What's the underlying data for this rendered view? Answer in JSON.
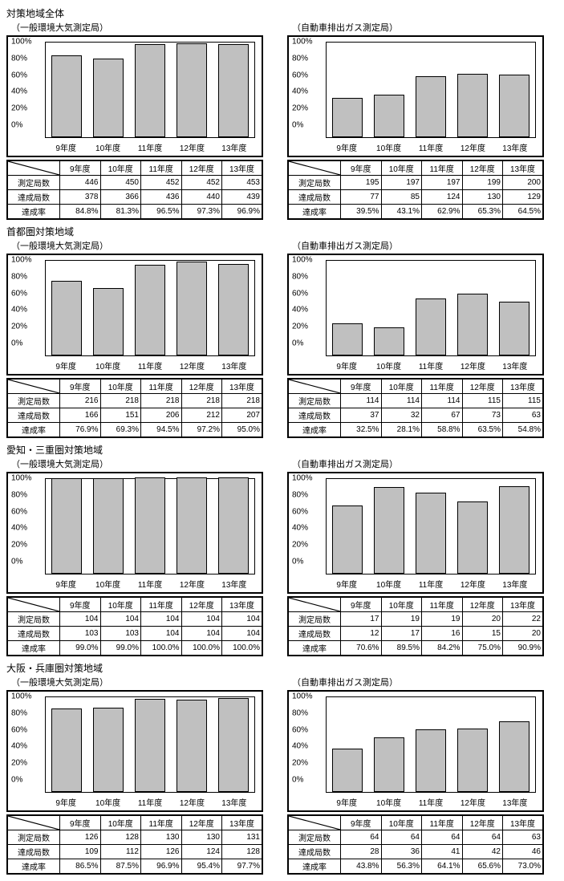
{
  "regions": [
    {
      "title": "対策地域全体",
      "left": {
        "subtitle": "（一般環境大気測定局）",
        "categories": [
          "9年度",
          "10年度",
          "11年度",
          "12年度",
          "13年度"
        ],
        "values": [
          84.8,
          81.3,
          96.5,
          97.3,
          96.9
        ],
        "rows": [
          {
            "label": "測定局数",
            "cells": [
              "446",
              "450",
              "452",
              "452",
              "453"
            ]
          },
          {
            "label": "達成局数",
            "cells": [
              "378",
              "366",
              "436",
              "440",
              "439"
            ]
          },
          {
            "label": "達成率",
            "cells": [
              "84.8%",
              "81.3%",
              "96.5%",
              "97.3%",
              "96.9%"
            ]
          }
        ]
      },
      "right": {
        "subtitle": "（自動車排出ガス測定局）",
        "categories": [
          "9年度",
          "10年度",
          "11年度",
          "12年度",
          "13年度"
        ],
        "values": [
          39.5,
          43.1,
          62.9,
          65.3,
          64.5
        ],
        "rows": [
          {
            "label": "測定局数",
            "cells": [
              "195",
              "197",
              "197",
              "199",
              "200"
            ]
          },
          {
            "label": "達成局数",
            "cells": [
              "77",
              "85",
              "124",
              "130",
              "129"
            ]
          },
          {
            "label": "達成率",
            "cells": [
              "39.5%",
              "43.1%",
              "62.9%",
              "65.3%",
              "64.5%"
            ]
          }
        ]
      }
    },
    {
      "title": "首都圏対策地域",
      "left": {
        "subtitle": "（一般環境大気測定局）",
        "categories": [
          "9年度",
          "10年度",
          "11年度",
          "12年度",
          "13年度"
        ],
        "values": [
          76.9,
          69.3,
          94.5,
          97.2,
          95.0
        ],
        "rows": [
          {
            "label": "測定局数",
            "cells": [
              "216",
              "218",
              "218",
              "218",
              "218"
            ]
          },
          {
            "label": "達成局数",
            "cells": [
              "166",
              "151",
              "206",
              "212",
              "207"
            ]
          },
          {
            "label": "達成率",
            "cells": [
              "76.9%",
              "69.3%",
              "94.5%",
              "97.2%",
              "95.0%"
            ]
          }
        ]
      },
      "right": {
        "subtitle": "（自動車排出ガス測定局）",
        "categories": [
          "9年度",
          "10年度",
          "11年度",
          "12年度",
          "13年度"
        ],
        "values": [
          32.5,
          28.1,
          58.8,
          63.5,
          54.8
        ],
        "rows": [
          {
            "label": "測定局数",
            "cells": [
              "114",
              "114",
              "114",
              "115",
              "115"
            ]
          },
          {
            "label": "達成局数",
            "cells": [
              "37",
              "32",
              "67",
              "73",
              "63"
            ]
          },
          {
            "label": "達成率",
            "cells": [
              "32.5%",
              "28.1%",
              "58.8%",
              "63.5%",
              "54.8%"
            ]
          }
        ]
      }
    },
    {
      "title": "愛知・三重圏対策地域",
      "left": {
        "subtitle": "（一般環境大気測定局）",
        "categories": [
          "9年度",
          "10年度",
          "11年度",
          "12年度",
          "13年度"
        ],
        "values": [
          99.0,
          99.0,
          100.0,
          100.0,
          100.0
        ],
        "rows": [
          {
            "label": "測定局数",
            "cells": [
              "104",
              "104",
              "104",
              "104",
              "104"
            ]
          },
          {
            "label": "達成局数",
            "cells": [
              "103",
              "103",
              "104",
              "104",
              "104"
            ]
          },
          {
            "label": "達成率",
            "cells": [
              "99.0%",
              "99.0%",
              "100.0%",
              "100.0%",
              "100.0%"
            ]
          }
        ]
      },
      "right": {
        "subtitle": "（自動車排出ガス測定局）",
        "categories": [
          "9年度",
          "10年度",
          "11年度",
          "12年度",
          "13年度"
        ],
        "values": [
          70.6,
          89.5,
          84.2,
          75.0,
          90.9
        ],
        "rows": [
          {
            "label": "測定局数",
            "cells": [
              "17",
              "19",
              "19",
              "20",
              "22"
            ]
          },
          {
            "label": "達成局数",
            "cells": [
              "12",
              "17",
              "16",
              "15",
              "20"
            ]
          },
          {
            "label": "達成率",
            "cells": [
              "70.6%",
              "89.5%",
              "84.2%",
              "75.0%",
              "90.9%"
            ]
          }
        ]
      }
    },
    {
      "title": "大阪・兵庫圏対策地域",
      "left": {
        "subtitle": "（一般環境大気測定局）",
        "categories": [
          "9年度",
          "10年度",
          "11年度",
          "12年度",
          "13年度"
        ],
        "values": [
          86.5,
          87.5,
          96.9,
          95.4,
          97.7
        ],
        "rows": [
          {
            "label": "測定局数",
            "cells": [
              "126",
              "128",
              "130",
              "130",
              "131"
            ]
          },
          {
            "label": "達成局数",
            "cells": [
              "109",
              "112",
              "126",
              "124",
              "128"
            ]
          },
          {
            "label": "達成率",
            "cells": [
              "86.5%",
              "87.5%",
              "96.9%",
              "95.4%",
              "97.7%"
            ]
          }
        ]
      },
      "right": {
        "subtitle": "（自動車排出ガス測定局）",
        "categories": [
          "9年度",
          "10年度",
          "11年度",
          "12年度",
          "13年度"
        ],
        "values": [
          43.8,
          56.3,
          64.1,
          65.6,
          73.0
        ],
        "rows": [
          {
            "label": "測定局数",
            "cells": [
              "64",
              "64",
              "64",
              "64",
              "63"
            ]
          },
          {
            "label": "達成局数",
            "cells": [
              "28",
              "36",
              "41",
              "42",
              "46"
            ]
          },
          {
            "label": "達成率",
            "cells": [
              "43.8%",
              "56.3%",
              "64.1%",
              "65.6%",
              "73.0%"
            ]
          }
        ]
      }
    }
  ],
  "chart_style": {
    "ylim": [
      0,
      100
    ],
    "ytick_step": 20,
    "bar_color": "#c0c0c0",
    "bar_border": "#000000",
    "frame_border": "#000000",
    "background": "#ffffff",
    "grid": "#e5e5e5",
    "ytick_labels": [
      "0%",
      "20%",
      "40%",
      "60%",
      "80%",
      "100%"
    ]
  }
}
